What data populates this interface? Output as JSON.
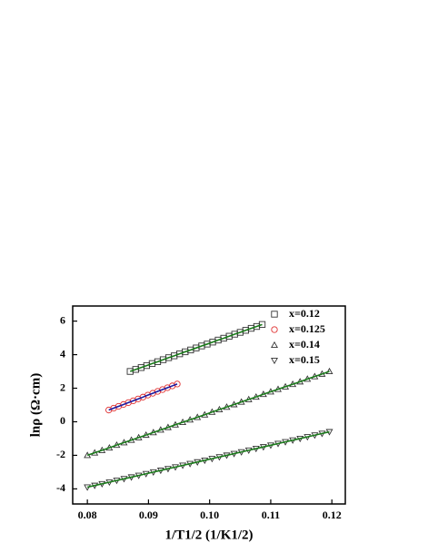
{
  "chart_data": {
    "type": "scatter",
    "xlabel": "1/T1/2 (1/K1/2)",
    "ylabel": "lnρ (Ω·cm)",
    "xlim": [
      0.0776,
      0.1222
    ],
    "ylim": [
      -4.9,
      6.9
    ],
    "xticks": [
      0.08,
      0.09,
      {
        "value": 0.1,
        "label": "0.10"
      },
      0.11,
      0.12
    ],
    "yticks": [
      -4,
      -2,
      0,
      2,
      4,
      6
    ],
    "legend": "upper right",
    "series": [
      {
        "name": "x=0.12",
        "marker": "square",
        "color": "#333333",
        "line_color": "#1a7a1a",
        "x": [
          0.087,
          0.0879,
          0.0888,
          0.0897,
          0.0906,
          0.0915,
          0.0924,
          0.0933,
          0.0942,
          0.0951,
          0.096,
          0.0969,
          0.0978,
          0.0987,
          0.0996,
          0.1005,
          0.1014,
          0.1023,
          0.1032,
          0.1041,
          0.105,
          0.1059,
          0.1068,
          0.1077,
          0.1086
        ],
        "values": [
          3.0,
          3.12,
          3.23,
          3.35,
          3.47,
          3.58,
          3.7,
          3.82,
          3.93,
          4.05,
          4.17,
          4.28,
          4.4,
          4.52,
          4.63,
          4.75,
          4.87,
          4.98,
          5.1,
          5.22,
          5.33,
          5.45,
          5.57,
          5.68,
          5.8
        ]
      },
      {
        "name": "x=0.125",
        "marker": "circle",
        "color": "#e03030",
        "line_color": "#1a1aa0",
        "x": [
          0.0835,
          0.0843,
          0.0851,
          0.0859,
          0.0867,
          0.0875,
          0.0883,
          0.0891,
          0.0899,
          0.0907,
          0.0915,
          0.0923,
          0.0931,
          0.0939,
          0.0947
        ],
        "values": [
          0.7,
          0.81,
          0.92,
          1.03,
          1.14,
          1.25,
          1.36,
          1.47,
          1.59,
          1.7,
          1.81,
          1.92,
          2.03,
          2.14,
          2.25
        ]
      },
      {
        "name": "x=0.14",
        "marker": "triangle-up",
        "color": "#333333",
        "line_color": "#1a7a1a",
        "x": [
          0.08,
          0.0812,
          0.0824,
          0.0836,
          0.0848,
          0.086,
          0.0872,
          0.0884,
          0.0896,
          0.0908,
          0.092,
          0.0932,
          0.0944,
          0.0956,
          0.0968,
          0.098,
          0.0992,
          0.1004,
          0.1016,
          0.1028,
          0.104,
          0.1052,
          0.1064,
          0.1076,
          0.1088,
          0.11,
          0.1112,
          0.1124,
          0.1136,
          0.1148,
          0.116,
          0.1172,
          0.1184,
          0.1196
        ],
        "values": [
          -2.0,
          -1.85,
          -1.7,
          -1.55,
          -1.39,
          -1.24,
          -1.09,
          -0.94,
          -0.79,
          -0.64,
          -0.48,
          -0.33,
          -0.18,
          -0.03,
          0.12,
          0.27,
          0.42,
          0.58,
          0.73,
          0.88,
          1.03,
          1.18,
          1.33,
          1.48,
          1.64,
          1.79,
          1.94,
          2.09,
          2.24,
          2.39,
          2.55,
          2.7,
          2.85,
          3.0
        ]
      },
      {
        "name": "x=0.15",
        "marker": "triangle-down",
        "color": "#333333",
        "line_color": "#1a7a1a",
        "x": [
          0.08,
          0.0812,
          0.0824,
          0.0836,
          0.0848,
          0.086,
          0.0872,
          0.0884,
          0.0896,
          0.0908,
          0.092,
          0.0932,
          0.0944,
          0.0956,
          0.0968,
          0.098,
          0.0992,
          0.1004,
          0.1016,
          0.1028,
          0.104,
          0.1052,
          0.1064,
          0.1076,
          0.1088,
          0.11,
          0.1112,
          0.1124,
          0.1136,
          0.1148,
          0.116,
          0.1172,
          0.1184,
          0.1196
        ],
        "values": [
          -3.9,
          -3.8,
          -3.7,
          -3.6,
          -3.5,
          -3.4,
          -3.3,
          -3.2,
          -3.1,
          -3.0,
          -2.9,
          -2.8,
          -2.7,
          -2.6,
          -2.5,
          -2.4,
          -2.3,
          -2.2,
          -2.1,
          -2.0,
          -1.9,
          -1.8,
          -1.7,
          -1.6,
          -1.5,
          -1.4,
          -1.3,
          -1.2,
          -1.1,
          -1.0,
          -0.9,
          -0.8,
          -0.7,
          -0.6
        ]
      }
    ]
  }
}
